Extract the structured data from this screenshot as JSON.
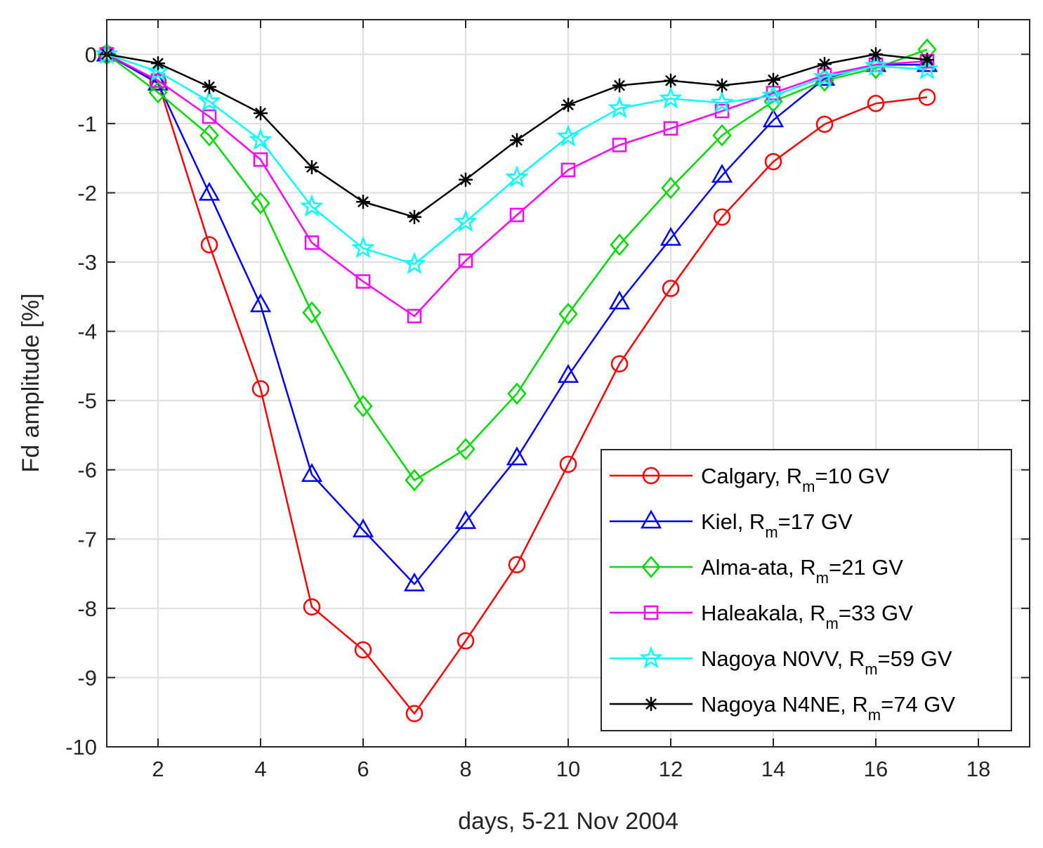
{
  "chart_data": {
    "type": "line",
    "title": "",
    "xlabel": "days, 5-21 Nov 2004",
    "ylabel": "Fd amplitude [%]",
    "xlim": [
      1,
      19
    ],
    "ylim": [
      -10,
      0.5
    ],
    "xticks": [
      2,
      4,
      6,
      8,
      10,
      12,
      14,
      16,
      18
    ],
    "yticks": [
      0,
      -1,
      -2,
      -3,
      -4,
      -5,
      -6,
      -7,
      -8,
      -9,
      -10
    ],
    "grid": true,
    "legend_position": "bottom-right",
    "x": [
      1,
      2,
      3,
      4,
      5,
      6,
      7,
      8,
      9,
      10,
      11,
      12,
      13,
      14,
      15,
      16,
      17
    ],
    "series": [
      {
        "name": "Calgary",
        "rigidity": "10 GV",
        "color": "#ff0000",
        "marker": "circle",
        "values": [
          0,
          -0.4,
          -2.75,
          -4.83,
          -7.98,
          -8.6,
          -9.52,
          -8.47,
          -7.37,
          -5.92,
          -4.47,
          -3.38,
          -2.35,
          -1.55,
          -1.01,
          -0.71,
          -0.62
        ]
      },
      {
        "name": "Kiel",
        "rigidity": "17 GV",
        "color": "#0000ff",
        "marker": "triangle",
        "values": [
          0,
          -0.42,
          -2.01,
          -3.62,
          -6.07,
          -6.87,
          -7.65,
          -6.75,
          -5.83,
          -4.64,
          -3.58,
          -2.66,
          -1.75,
          -0.95,
          -0.35,
          -0.15,
          -0.15
        ]
      },
      {
        "name": "Alma-ata",
        "rigidity": "21 GV",
        "color": "#00dd00",
        "marker": "diamond",
        "values": [
          0,
          -0.55,
          -1.17,
          -2.15,
          -3.73,
          -5.08,
          -6.15,
          -5.7,
          -4.9,
          -3.75,
          -2.75,
          -1.93,
          -1.17,
          -0.68,
          -0.38,
          -0.2,
          0.07
        ]
      },
      {
        "name": "Haleakala",
        "rigidity": "33 GV",
        "color": "#ff00ff",
        "marker": "square",
        "values": [
          0,
          -0.38,
          -0.9,
          -1.52,
          -2.72,
          -3.28,
          -3.78,
          -2.98,
          -2.32,
          -1.67,
          -1.31,
          -1.07,
          -0.82,
          -0.56,
          -0.3,
          -0.15,
          -0.1
        ]
      },
      {
        "name": "Nagoya N0VV",
        "rigidity": "59 GV",
        "color": "#00ffff",
        "marker": "star5",
        "values": [
          0,
          -0.25,
          -0.68,
          -1.24,
          -2.2,
          -2.8,
          -3.03,
          -2.42,
          -1.78,
          -1.19,
          -0.78,
          -0.64,
          -0.7,
          -0.6,
          -0.33,
          -0.17,
          -0.22
        ]
      },
      {
        "name": "Nagoya N4NE",
        "rigidity": "74 GV",
        "color": "#000000",
        "marker": "asterisk",
        "values": [
          0,
          -0.13,
          -0.47,
          -0.85,
          -1.63,
          -2.13,
          -2.35,
          -1.81,
          -1.24,
          -0.73,
          -0.45,
          -0.38,
          -0.45,
          -0.37,
          -0.14,
          0.0,
          -0.08
        ]
      }
    ]
  }
}
